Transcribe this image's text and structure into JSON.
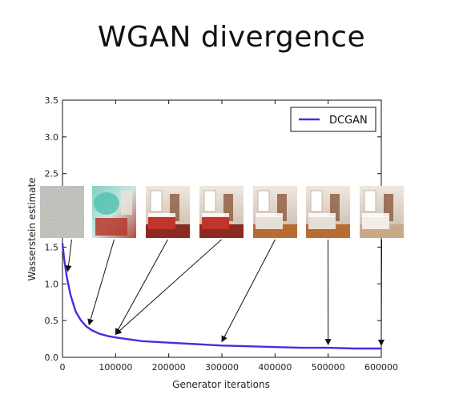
{
  "slide": {
    "title": "WGAN divergence"
  },
  "chart_data": {
    "type": "line",
    "title": "",
    "xlabel": "Generator iterations",
    "ylabel": "Wasserstein estimate",
    "xlim": [
      0,
      600000
    ],
    "ylim": [
      0,
      3.5
    ],
    "xticks": [
      0,
      100000,
      200000,
      300000,
      400000,
      500000,
      600000
    ],
    "yticks": [
      0.0,
      0.5,
      1.0,
      1.5,
      2.0,
      2.5,
      3.0,
      3.5
    ],
    "xtick_labels": [
      "0",
      "100000",
      "200000",
      "300000",
      "400000",
      "500000",
      "600000"
    ],
    "ytick_labels": [
      "0.0",
      "0.5",
      "1.0",
      "1.5",
      "2.0",
      "2.5",
      "3.0",
      "3.5"
    ],
    "legend": {
      "position": "top-right",
      "entries": [
        "DCGAN"
      ]
    },
    "grid": false,
    "series": [
      {
        "name": "DCGAN",
        "color": "#4b2be0",
        "x": [
          0,
          3000,
          8000,
          15000,
          25000,
          35000,
          45000,
          55000,
          70000,
          85000,
          100000,
          120000,
          150000,
          200000,
          250000,
          300000,
          350000,
          400000,
          450000,
          500000,
          550000,
          600000
        ],
        "y": [
          1.55,
          1.35,
          1.1,
          0.85,
          0.62,
          0.5,
          0.42,
          0.37,
          0.32,
          0.29,
          0.27,
          0.25,
          0.22,
          0.2,
          0.18,
          0.16,
          0.15,
          0.14,
          0.13,
          0.13,
          0.12,
          0.12
        ]
      }
    ],
    "annotations": [
      {
        "kind": "sample-image",
        "style": "noise",
        "x": 10000,
        "y": 1.13
      },
      {
        "kind": "sample-image",
        "style": "blurry-room",
        "x": 50000,
        "y": 0.4
      },
      {
        "kind": "sample-image",
        "style": "bedroom-red",
        "x": 100000,
        "y": 0.27
      },
      {
        "kind": "sample-image",
        "style": "bedroom-red",
        "x": 100000,
        "y": 0.27
      },
      {
        "kind": "sample-image",
        "style": "bedroom-wood",
        "x": 300000,
        "y": 0.17
      },
      {
        "kind": "sample-image",
        "style": "bedroom-wood",
        "x": 500000,
        "y": 0.13
      },
      {
        "kind": "sample-image",
        "style": "bedroom-light",
        "x": 600000,
        "y": 0.12
      }
    ]
  }
}
